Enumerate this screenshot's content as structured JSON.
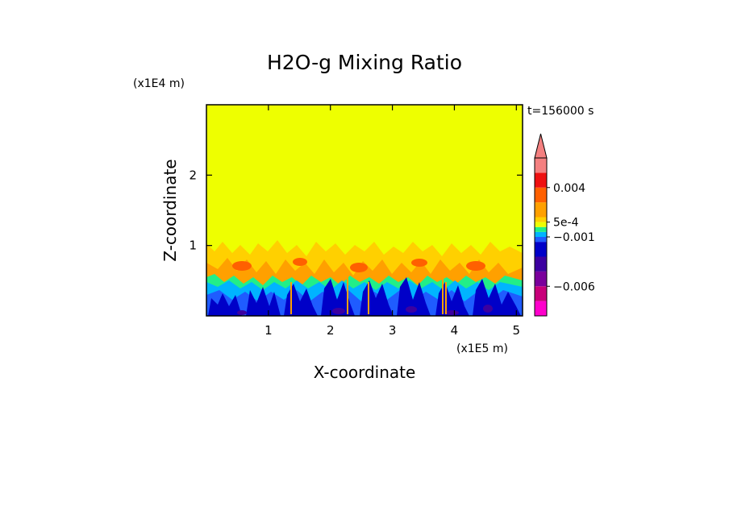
{
  "chart_data": {
    "type": "heatmap",
    "title": "H2O-g Mixing Ratio",
    "xlabel": "X-coordinate",
    "ylabel": "Z-coordinate",
    "x_unit": "(x1E5 m)",
    "y_unit": "(x1E4 m)",
    "time_label": "t=156000 s",
    "xlim": [
      0,
      5.1
    ],
    "ylim": [
      0,
      3.0
    ],
    "x_ticks": [
      1,
      2,
      3,
      4,
      5
    ],
    "y_ticks": [
      1,
      2
    ],
    "grid": false,
    "colorbar": {
      "placement": "right",
      "extend": "max",
      "ticks": [
        {
          "label": "0.004",
          "value": 0.004
        },
        {
          "label": "5e-4",
          "value": 0.0005
        },
        {
          "label": "−0.001",
          "value": -0.001
        },
        {
          "label": "−0.006",
          "value": -0.006
        }
      ],
      "levels": [
        {
          "from": -0.009,
          "to": -0.0075,
          "color": "#ff00cc"
        },
        {
          "from": -0.0075,
          "to": -0.006,
          "color": "#c8007a"
        },
        {
          "from": -0.006,
          "to": -0.0045,
          "color": "#7a009c"
        },
        {
          "from": -0.0045,
          "to": -0.003,
          "color": "#3c00a0"
        },
        {
          "from": -0.003,
          "to": -0.0015,
          "color": "#0000c8"
        },
        {
          "from": -0.0015,
          "to": -0.001,
          "color": "#1f5cff"
        },
        {
          "from": -0.001,
          "to": -0.0005,
          "color": "#00b4ff"
        },
        {
          "from": -0.0005,
          "to": 0.0,
          "color": "#22ee88"
        },
        {
          "from": 0.0,
          "to": 0.0005,
          "color": "#eeff00"
        },
        {
          "from": 0.0005,
          "to": 0.001,
          "color": "#ffd000"
        },
        {
          "from": 0.001,
          "to": 0.0025,
          "color": "#ffa000"
        },
        {
          "from": 0.0025,
          "to": 0.004,
          "color": "#ff6000"
        },
        {
          "from": 0.004,
          "to": 0.0055,
          "color": "#ee1010"
        },
        {
          "from": 0.0055,
          "to": 0.007,
          "color": "#f48080"
        }
      ]
    },
    "field_layers": [
      {
        "from_z": 1.05,
        "to_z": 3.0,
        "value_class": "0 to 5e-4"
      },
      {
        "from_z": 0.6,
        "to_z": 1.05,
        "value_class": "5e-4 to 0.004"
      },
      {
        "from_z": 0.0,
        "to_z": 0.6,
        "value_class": "-0.0045 to 0"
      }
    ]
  }
}
